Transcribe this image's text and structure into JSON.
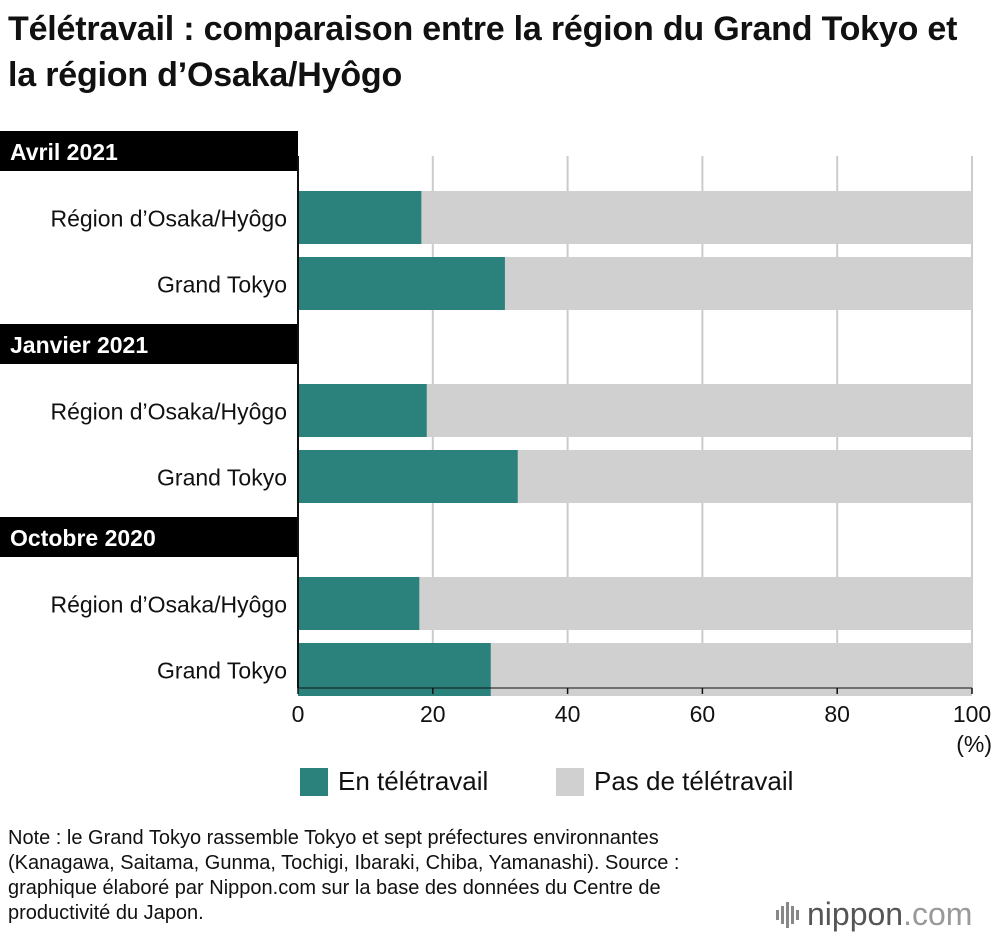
{
  "title": "Télétravail : comparaison entre la région du Grand Tokyo et la région d’Osaka/Hyôgo",
  "colors": {
    "teletravail": "#2b827d",
    "pas_teletravail": "#d0d0d0",
    "header_bg": "#000000",
    "grid": "#cccccc"
  },
  "chart_data": {
    "type": "bar",
    "orientation": "horizontal",
    "stacked": true,
    "unit": "(%)",
    "xlim": [
      0,
      100
    ],
    "xticks": [
      "0",
      "20",
      "40",
      "60",
      "80",
      "100"
    ],
    "grid": true,
    "legend_position": "bottom",
    "groups": [
      {
        "label": "Avril 2021",
        "categories": [
          "Région d’Osaka/Hyôgo",
          "Grand Tokyo"
        ],
        "teletravail": [
          18.3,
          30.7
        ]
      },
      {
        "label": "Janvier 2021",
        "categories": [
          "Région d’Osaka/Hyôgo",
          "Grand Tokyo"
        ],
        "teletravail": [
          19.1,
          32.6
        ]
      },
      {
        "label": "Octobre 2020",
        "categories": [
          "Région d’Osaka/Hyôgo",
          "Grand Tokyo"
        ],
        "teletravail": [
          18.0,
          28.6
        ]
      }
    ],
    "series": [
      {
        "name": "En télétravail"
      },
      {
        "name": "Pas de télétravail"
      }
    ]
  },
  "legend": {
    "item1": "En télétravail",
    "item2": "Pas de télétravail"
  },
  "note": "Note : le Grand Tokyo rassemble Tokyo et sept préfectures environnantes (Kanagawa, Saitama, Gunma, Tochigi, Ibaraki, Chiba, Yamanashi). Source : graphique élaboré par Nippon.com sur la base des données du Centre de productivité du Japon.",
  "logo": {
    "name": "nippon",
    "domain": ".com"
  }
}
